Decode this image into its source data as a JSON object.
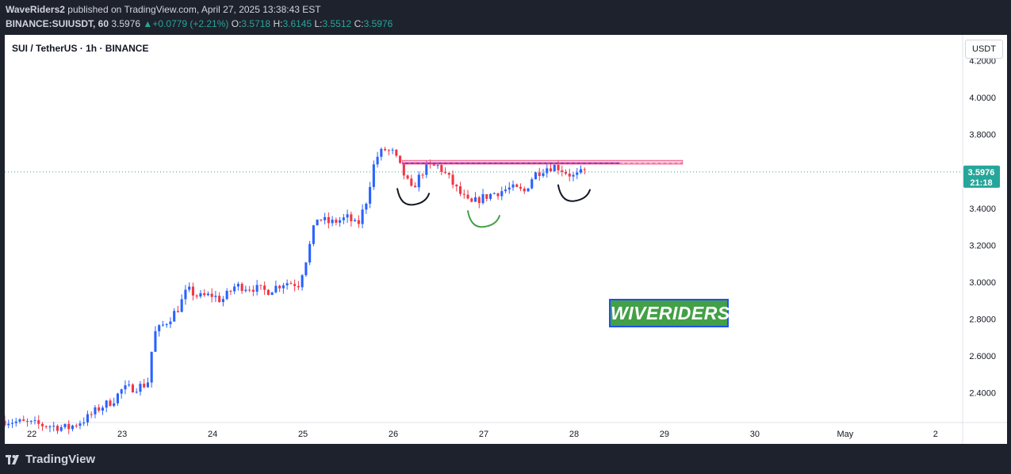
{
  "header": {
    "publisher": "WaveRiders2",
    "published_text": "published on TradingView.com, April 27, 2025 13:38:43 EST",
    "symbol_line": "BINANCE:SUIUSDT, 60",
    "last": "3.5976",
    "change_arrow": "▲",
    "change": "+0.0779 (+2.21%)",
    "o_label": "O:",
    "o": "3.5718",
    "h_label": "H:",
    "h": "3.6145",
    "l_label": "L:",
    "l": "3.5512",
    "c_label": "C:",
    "c": "3.5976"
  },
  "legend": {
    "title": "SUI / TetherUS · 1h · BINANCE"
  },
  "price_axis": {
    "unit": "USDT"
  },
  "current_price": {
    "value": "3.5976",
    "countdown": "21:18"
  },
  "watermark": {
    "text": "WIVERIDERS"
  },
  "footer": {
    "brand": "TradingView"
  },
  "colors": {
    "up": "#2962ff",
    "down": "#f23645",
    "last_price": "#26a69a",
    "resistance": "#f06292"
  },
  "chart_data": {
    "type": "candlestick",
    "ylim": [
      2.24,
      4.34
    ],
    "y_ticks": [
      "4.2000",
      "4.0000",
      "3.8000",
      "3.6000",
      "3.4000",
      "3.2000",
      "3.0000",
      "2.8000",
      "2.6000",
      "2.4000"
    ],
    "x_ticks": [
      {
        "label": "22",
        "t": 0
      },
      {
        "label": "23",
        "t": 1
      },
      {
        "label": "24",
        "t": 2
      },
      {
        "label": "25",
        "t": 3
      },
      {
        "label": "26",
        "t": 4
      },
      {
        "label": "27",
        "t": 5
      },
      {
        "label": "28",
        "t": 6
      },
      {
        "label": "29",
        "t": 7
      },
      {
        "label": "30",
        "t": 8
      },
      {
        "label": "May",
        "t": 9
      },
      {
        "label": "2",
        "t": 10
      }
    ],
    "x_range_days": [
      -0.3,
      10.3
    ],
    "close_path": [
      [
        -0.3,
        2.25
      ],
      [
        0.4,
        2.21
      ],
      [
        0.6,
        2.26
      ],
      [
        0.75,
        2.32
      ],
      [
        0.9,
        2.36
      ],
      [
        1.0,
        2.42
      ],
      [
        1.15,
        2.43
      ],
      [
        1.28,
        2.45
      ],
      [
        1.35,
        2.72
      ],
      [
        1.5,
        2.79
      ],
      [
        1.62,
        2.86
      ],
      [
        1.72,
        2.96
      ],
      [
        1.85,
        2.92
      ],
      [
        2.0,
        2.93
      ],
      [
        2.1,
        2.9
      ],
      [
        2.25,
        2.98
      ],
      [
        2.45,
        2.97
      ],
      [
        2.6,
        2.95
      ],
      [
        2.8,
        3.0
      ],
      [
        2.95,
        2.99
      ],
      [
        3.05,
        3.15
      ],
      [
        3.15,
        3.35
      ],
      [
        3.3,
        3.32
      ],
      [
        3.5,
        3.35
      ],
      [
        3.6,
        3.3
      ],
      [
        3.7,
        3.44
      ],
      [
        3.8,
        3.67
      ],
      [
        3.9,
        3.72
      ],
      [
        4.0,
        3.7
      ],
      [
        4.1,
        3.6
      ],
      [
        4.2,
        3.5
      ],
      [
        4.35,
        3.62
      ],
      [
        4.5,
        3.63
      ],
      [
        4.62,
        3.56
      ],
      [
        4.72,
        3.49
      ],
      [
        4.85,
        3.42
      ],
      [
        4.95,
        3.45
      ],
      [
        5.1,
        3.48
      ],
      [
        5.3,
        3.51
      ],
      [
        5.45,
        3.49
      ],
      [
        5.55,
        3.58
      ],
      [
        5.68,
        3.62
      ],
      [
        5.8,
        3.63
      ],
      [
        5.9,
        3.6
      ],
      [
        6.0,
        3.57
      ],
      [
        6.12,
        3.6
      ]
    ],
    "resistance": {
      "price_top": 3.66,
      "price_bottom": 3.64,
      "t_start": 4.1,
      "t_end": 7.2
    },
    "resistance_line": {
      "price": 3.645,
      "t_start": 4.1,
      "t_end": 6.5
    },
    "last_price": 3.5976,
    "annotations": [
      {
        "type": "arc",
        "color": "black",
        "t_center": 4.22,
        "price_bottom": 3.42
      },
      {
        "type": "arc",
        "color": "green",
        "t_center": 5.0,
        "price_bottom": 3.3
      },
      {
        "type": "arc",
        "color": "black",
        "t_center": 6.0,
        "price_bottom": 3.44
      }
    ]
  }
}
